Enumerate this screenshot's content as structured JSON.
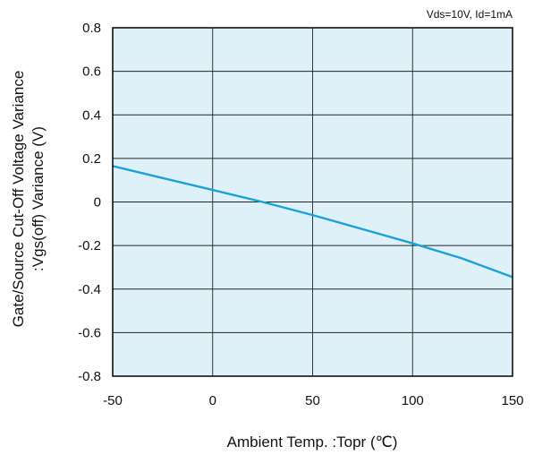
{
  "chart_data": {
    "type": "line",
    "title": "",
    "condition": "Vds=10V, Id=1mA",
    "xlabel": "Ambient Temp. :Topr (℃)",
    "ylabel_line1": "Gate/Source Cut-Off Voltage Variance",
    "ylabel_line2": ":Vgs(off) Variance (V)",
    "xlim": [
      -50,
      150
    ],
    "ylim": [
      -0.8,
      0.8
    ],
    "xticks": [
      "-50",
      "0",
      "50",
      "100",
      "150"
    ],
    "yticks": [
      "0.8",
      "0.6",
      "0.4",
      "0.2",
      "0",
      "-0.2",
      "-0.4",
      "-0.6",
      "-0.8"
    ],
    "grid": true,
    "plot_background": "#dff1f8",
    "line_color": "#1ba1dc",
    "series": [
      {
        "x": [
          -50,
          -25,
          0,
          25,
          50,
          75,
          100,
          125,
          150
        ],
        "values": [
          0.165,
          0.11,
          0.055,
          0.0,
          -0.06,
          -0.125,
          -0.19,
          -0.26,
          -0.345
        ]
      }
    ]
  }
}
